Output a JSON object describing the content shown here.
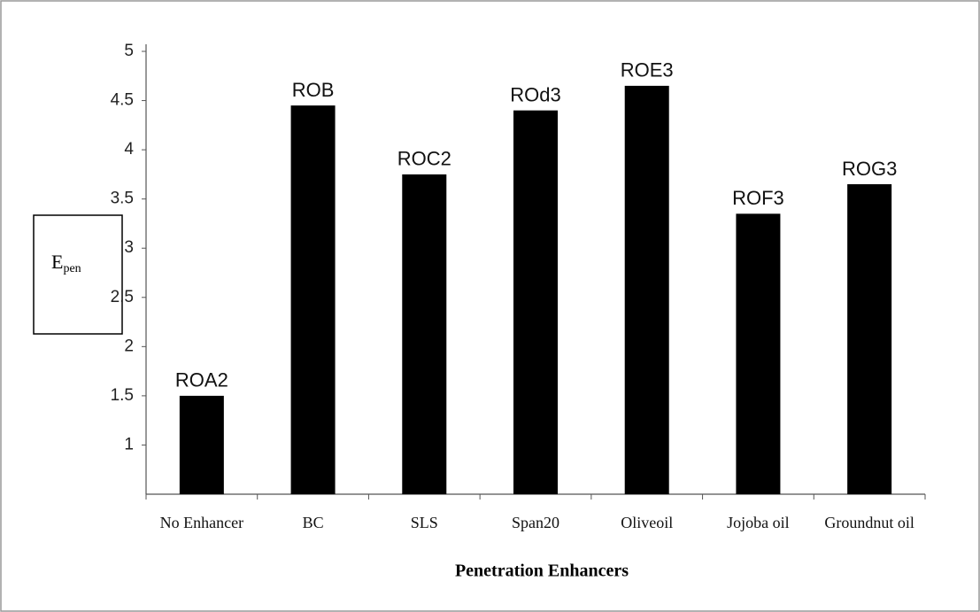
{
  "chart_data": {
    "type": "bar",
    "x_label": "Penetration Enhancers",
    "y_label": "E",
    "y_label_sub": "pen",
    "categories": [
      "No Enhancer",
      "BC",
      "SLS",
      "Span20",
      "Oliveoil",
      "Jojoba oil",
      "Groundnut oil"
    ],
    "values": [
      1.5,
      4.45,
      3.75,
      4.4,
      4.65,
      3.35,
      3.65
    ],
    "bar_labels": [
      "ROA2",
      "ROB",
      "ROC2",
      "ROd3",
      "ROE3",
      "ROF3",
      "ROG3"
    ],
    "color": "#000000",
    "ylim": [
      0.5,
      5
    ],
    "yticks": [
      1,
      1.5,
      2,
      2.5,
      3,
      3.5,
      4,
      4.5,
      5
    ],
    "grid": false
  }
}
